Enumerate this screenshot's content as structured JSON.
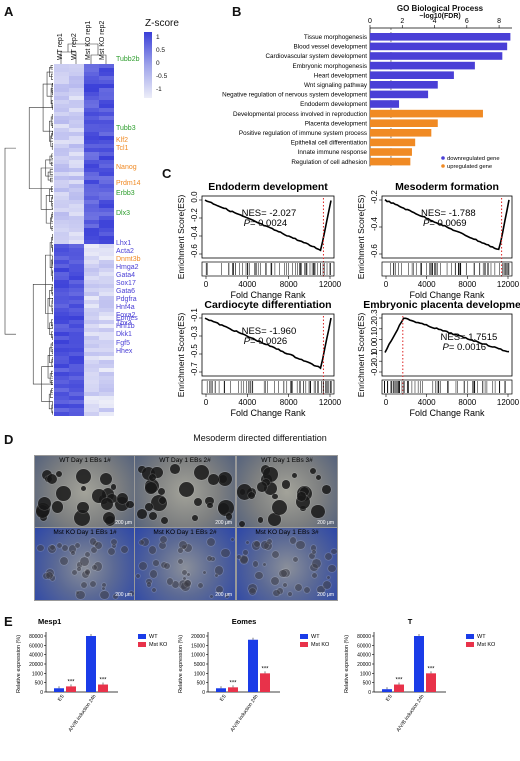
{
  "panels": {
    "A": "A",
    "B": "B",
    "C": "C",
    "D": "D",
    "E": "E"
  },
  "heatmap": {
    "columns": [
      "WT rep1",
      "WT rep2",
      "Mst KO rep1",
      "Mst KO rep2"
    ],
    "legend_title": "Z-score",
    "legend_ticks": [
      "1",
      "0.5",
      "0",
      "-0.5",
      "-1"
    ],
    "gene_groups": [
      {
        "color": "#2e9e2e",
        "genes": [
          "Tubb2b"
        ]
      },
      {
        "color": "#2e9e2e",
        "genes": [
          "Tubb3"
        ]
      },
      {
        "color": "#f08a24",
        "genes": [
          "Klf2",
          "Tcl1"
        ]
      },
      {
        "color": "#f08a24",
        "genes": [
          "Nanog"
        ]
      },
      {
        "color": "#f08a24",
        "genes": [
          "Prdm14"
        ]
      },
      {
        "color": "#2e9e2e",
        "genes": [
          "Erbb3"
        ]
      },
      {
        "color": "#2e9e2e",
        "genes": [
          "Dlx3"
        ]
      },
      {
        "color": "#4a3fd6",
        "genes": [
          "Lhx1",
          "Acta2"
        ]
      },
      {
        "color": "#f08a24",
        "genes": [
          "Dnmt3b"
        ]
      },
      {
        "color": "#4a3fd6",
        "genes": [
          "Hmga2",
          "Gata4",
          "Sox17",
          "Gata6",
          "Pdgfra",
          "Hnf4a",
          "Foxa2",
          "Tbx3"
        ]
      },
      {
        "color": "#4a3fd6",
        "genes": [
          "Eomes",
          "Hnf1b",
          "Dkk1"
        ]
      },
      {
        "color": "#4a3fd6",
        "genes": [
          "Fgf5",
          "Hhex"
        ]
      }
    ]
  },
  "go_chart": {
    "title": "GO Biological Process",
    "subtitle": "−log10(FDR)",
    "x_ticks": [
      "0",
      "2",
      "4",
      "6",
      "8"
    ],
    "legend": [
      {
        "label": "downregulated gene",
        "color": "#4a3fd6"
      },
      {
        "label": "upregulated gene",
        "color": "#f08a24"
      }
    ]
  },
  "gsea": {
    "ylabel": "Enrichment Score(ES)",
    "xlabel": "Fold Change Rank",
    "x_ticks": [
      "0",
      "4000",
      "8000",
      "12000"
    ],
    "plots": [
      {
        "title": "Endoderm development",
        "nes": "NES= -2.027",
        "p": "= 0.0024",
        "y_ticks": [
          "0.0",
          "-0.2",
          "-0.4",
          "-0.6"
        ]
      },
      {
        "title": "Mesoderm formation",
        "nes": "NES= -1.788",
        "p": "= 0.0069",
        "y_ticks": [
          "-0.2",
          "-0.4",
          "-0.6"
        ]
      },
      {
        "title": "Cardiocyte differentiation",
        "nes": "NES= -1.960",
        "p": "= 0.0026",
        "y_ticks": [
          "-0.1",
          "-0.3",
          "-0.5",
          "-0.7"
        ]
      },
      {
        "title": "Embryonic placenta development",
        "nes": "NES= 1.7515",
        "p": "= 0.0016",
        "y_ticks": [
          "0.3",
          "0.2",
          "0.1",
          "0.0",
          "-0.1",
          "-0.2"
        ]
      }
    ],
    "p_symbol": "P"
  },
  "micro": {
    "title": "Mesoderm directed differentiation",
    "images": [
      {
        "caption": "WT Day 1 EBs 1#"
      },
      {
        "caption": "WT Day 1 EBs 2#"
      },
      {
        "caption": "WT Day 1 EBs 3#"
      },
      {
        "caption": "Mst KO Day 1 EBs 1#"
      },
      {
        "caption": "Mst KO Day 1 EBs 2#"
      },
      {
        "caption": "Mst KO Day 1 EBs 3#"
      }
    ],
    "scale": "200 μm"
  },
  "bars": {
    "ylabel": "Relative expression (%)",
    "categories": [
      "ES",
      "A/V/B induction 24h"
    ],
    "legend": [
      {
        "label": "WT",
        "color": "#1a3ce8"
      },
      {
        "label": "Mst KO",
        "color": "#e8324a"
      }
    ],
    "sig": "***",
    "plots": [
      {
        "title": "Mesp1",
        "y_ticks": [
          "80000",
          "60000",
          "40000",
          "20000",
          "1000",
          "500",
          "0"
        ]
      },
      {
        "title": "Eomes",
        "y_ticks": [
          "20000",
          "15000",
          "10000",
          "5000",
          "1000",
          "500",
          "0"
        ]
      },
      {
        "title": "T",
        "y_ticks": [
          "80000",
          "60000",
          "40000",
          "20000",
          "1000",
          "500",
          "0"
        ]
      }
    ]
  },
  "chart_data": [
    {
      "type": "bar",
      "title": "GO Biological Process",
      "xlabel": "−log10(FDR)",
      "xlim": [
        0,
        8.8
      ],
      "categories": [
        "Tissue morphogenesis",
        "Blood vessel development",
        "Cardiovascular system development",
        "Embryonic morphogenesis",
        "Heart development",
        "Wnt signaling pathway",
        "Negative regulation of nervous system development",
        "Endoderm development",
        "Developmental process involved in reproduction",
        "Placenta development",
        "Positive regulation of immune system process",
        "Epithelial cell differentiation",
        "Innate immune response",
        "Regulation of cell adhesion"
      ],
      "values": [
        8.7,
        8.5,
        8.2,
        6.5,
        5.2,
        4.2,
        3.6,
        1.8,
        7.0,
        4.2,
        3.8,
        2.8,
        2.6,
        2.5
      ],
      "groups": [
        "down",
        "down",
        "down",
        "down",
        "down",
        "down",
        "down",
        "down",
        "up",
        "up",
        "up",
        "up",
        "up",
        "up"
      ]
    },
    {
      "type": "bar",
      "title": "Mesp1",
      "categories": [
        "ES",
        "A/V/B induction 24h"
      ],
      "series": [
        {
          "name": "WT",
          "values": [
            200,
            88000
          ]
        },
        {
          "name": "Mst KO",
          "values": [
            300,
            400
          ]
        }
      ]
    },
    {
      "type": "bar",
      "title": "Eomes",
      "categories": [
        "ES",
        "A/V/B induction 24h"
      ],
      "series": [
        {
          "name": "WT",
          "values": [
            200,
            18000
          ]
        },
        {
          "name": "Mst KO",
          "values": [
            250,
            1000
          ]
        }
      ]
    },
    {
      "type": "bar",
      "title": "T",
      "categories": [
        "ES",
        "A/V/B induction 24h"
      ],
      "series": [
        {
          "name": "WT",
          "values": [
            150,
            88000
          ]
        },
        {
          "name": "Mst KO",
          "values": [
            400,
            1000
          ]
        }
      ]
    }
  ]
}
